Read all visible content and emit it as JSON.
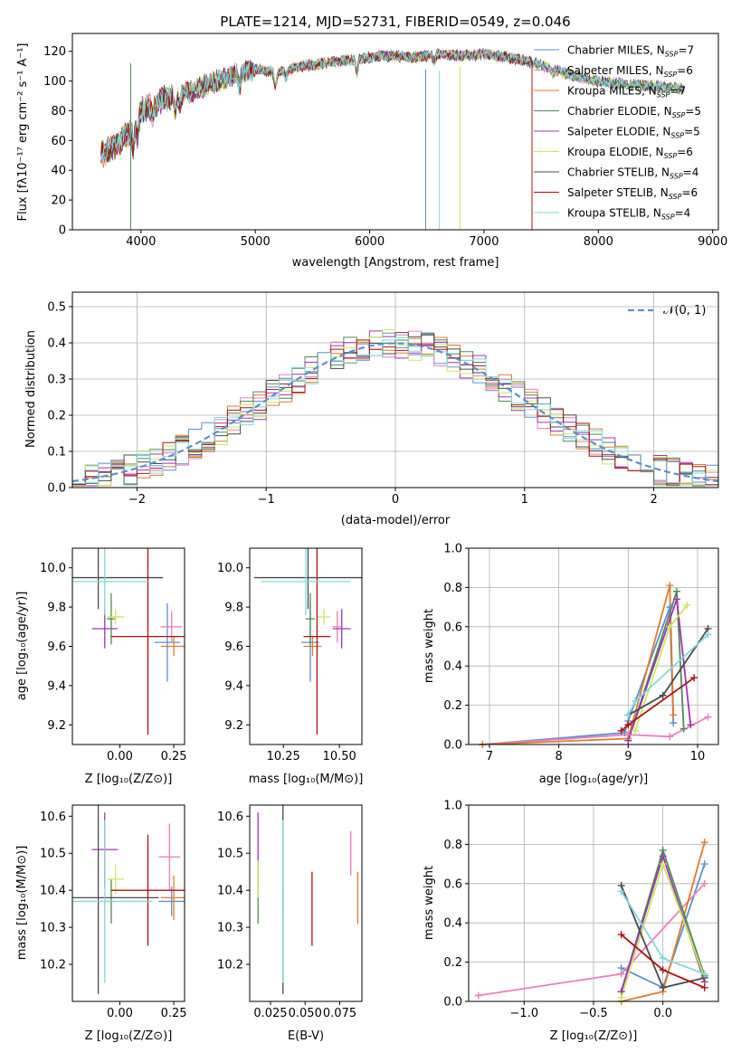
{
  "colors": {
    "Chabrier MILES": "#5b8fd0",
    "Salpeter MILES": "#e87fbf",
    "Kroupa MILES": "#e07b2a",
    "Chabrier ELODIE": "#4f8a55",
    "Salpeter ELODIE": "#a034b4",
    "Kroupa ELODIE": "#c9e85a",
    "Chabrier STELIB": "#4a4a4a",
    "Salpeter STELIB": "#b01010",
    "Kroupa STELIB": "#7fd8dc",
    "normal_curve": "#5b8fd0"
  },
  "chart_data": [
    {
      "id": "spectrum",
      "type": "line",
      "title": "PLATE=1214, MJD=52731, FIBERID=0549, z=0.046",
      "xlabel": "wavelength [Angstrom, rest frame]",
      "ylabel": "Flux [fλ10⁻¹⁷ erg cm⁻² s⁻¹ A⁻¹]",
      "xlim": [
        3400,
        9050
      ],
      "ylim": [
        0,
        132
      ],
      "xticks": [
        "4000",
        "5000",
        "6000",
        "7000",
        "8000",
        "9000"
      ],
      "yticks": [
        "0",
        "20",
        "40",
        "60",
        "80",
        "100",
        "120"
      ],
      "xtick_values": [
        4000,
        5000,
        6000,
        7000,
        8000,
        9000
      ],
      "ytick_values": [
        0,
        20,
        40,
        60,
        80,
        100,
        120
      ],
      "legend_position": "right",
      "legend": [
        {
          "name": "Chabrier MILES",
          "nssp": "7"
        },
        {
          "name": "Salpeter MILES",
          "nssp": "6"
        },
        {
          "name": "Kroupa MILES",
          "nssp": "7"
        },
        {
          "name": "Chabrier ELODIE",
          "nssp": "5"
        },
        {
          "name": "Salpeter ELODIE",
          "nssp": "5"
        },
        {
          "name": "Kroupa ELODIE",
          "nssp": "6"
        },
        {
          "name": "Chabrier STELIB",
          "nssp": "4"
        },
        {
          "name": "Salpeter STELIB",
          "nssp": "6"
        },
        {
          "name": "Kroupa STELIB",
          "nssp": "4"
        }
      ],
      "continuum": {
        "x": [
          3650,
          3750,
          3900,
          4000,
          4200,
          4400,
          4600,
          4800,
          5000,
          5200,
          5400,
          5600,
          5800,
          6000,
          6200,
          6400,
          6600,
          6800,
          7000,
          7200,
          7400,
          7600,
          7800,
          8000,
          8200,
          8400,
          8600,
          8750
        ],
        "y": [
          50,
          55,
          65,
          80,
          88,
          92,
          98,
          104,
          108,
          106,
          110,
          112,
          114,
          116,
          117,
          116,
          118,
          117,
          118,
          116,
          113,
          108,
          103,
          100,
          98,
          97,
          96,
          95
        ],
        "spectrum_end": {
          "Kroupa STELIB": 8750,
          "Salpeter STELIB": 7420
        }
      }
    },
    {
      "id": "residuals",
      "type": "line",
      "xlabel": "(data-model)/error",
      "ylabel": "Normed distribution",
      "xlim": [
        -2.5,
        2.5
      ],
      "ylim": [
        0,
        0.54
      ],
      "xticks": [
        "−2",
        "−1",
        "0",
        "1",
        "2"
      ],
      "yticks": [
        "0.0",
        "0.1",
        "0.2",
        "0.3",
        "0.4",
        "0.5"
      ],
      "xtick_values": [
        -2,
        -1,
        0,
        1,
        2
      ],
      "ytick_values": [
        0,
        0.1,
        0.2,
        0.3,
        0.4,
        0.5
      ],
      "legend_label": "𝒩(0, 1)",
      "legend_position": "top-right",
      "bin_width": 0.1
    },
    {
      "id": "age-vs-z",
      "type": "scatter",
      "xlabel": "Z [log₁₀(Z/Z⊙)]",
      "ylabel": "age  [log₁₀(age/yr)]",
      "xlim": [
        -0.22,
        0.3
      ],
      "ylim": [
        9.1,
        10.1
      ],
      "xticks": [
        "0.00",
        "0.25"
      ],
      "yticks": [
        "9.2",
        "9.4",
        "9.6",
        "9.8",
        "10.0"
      ],
      "xtick_values": [
        0,
        0.25
      ],
      "ytick_values": [
        9.2,
        9.4,
        9.6,
        9.8,
        10.0
      ],
      "points": [
        {
          "model": "Chabrier MILES",
          "x": 0.22,
          "y": 9.62,
          "xerr": 0.06,
          "yerr": 0.2
        },
        {
          "model": "Salpeter MILES",
          "x": 0.24,
          "y": 9.7,
          "xerr": 0.05,
          "yerr": 0.08
        },
        {
          "model": "Kroupa MILES",
          "x": 0.25,
          "y": 9.6,
          "xerr": 0.06,
          "yerr": 0.05
        },
        {
          "model": "Chabrier ELODIE",
          "x": -0.04,
          "y": 9.74,
          "xerr": 0.02,
          "yerr": 0.13
        },
        {
          "model": "Salpeter ELODIE",
          "x": -0.07,
          "y": 9.69,
          "xerr": 0.06,
          "yerr": 0.1
        },
        {
          "model": "Kroupa ELODIE",
          "x": -0.02,
          "y": 9.75,
          "xerr": 0.04,
          "yerr": 0.04
        },
        {
          "model": "Chabrier STELIB",
          "x": -0.1,
          "y": 9.95,
          "xerr": 0.3,
          "yerr": 0.16
        },
        {
          "model": "Salpeter STELIB",
          "x": 0.13,
          "y": 9.65,
          "xerr": 0.17,
          "yerr": 0.5
        },
        {
          "model": "Kroupa STELIB",
          "x": -0.07,
          "y": 9.93,
          "xerr": 0.2,
          "yerr": 0.17
        }
      ]
    },
    {
      "id": "age-vs-mass",
      "type": "scatter",
      "xlabel": "mass [log₁₀(M/M⊙)]",
      "xlim": [
        10.1,
        10.6
      ],
      "ylim": [
        9.1,
        10.1
      ],
      "xticks": [
        "10.25",
        "10.50"
      ],
      "yticks": [
        "9.2",
        "9.4",
        "9.6",
        "9.8",
        "10.0"
      ],
      "xtick_values": [
        10.25,
        10.5
      ],
      "ytick_values": [
        9.2,
        9.4,
        9.6,
        9.8,
        10.0
      ],
      "points": [
        {
          "model": "Chabrier MILES",
          "x": 10.37,
          "y": 9.62,
          "xerr": 0.04,
          "yerr": 0.2
        },
        {
          "model": "Salpeter MILES",
          "x": 10.49,
          "y": 9.7,
          "xerr": 0.02,
          "yerr": 0.08
        },
        {
          "model": "Kroupa MILES",
          "x": 10.38,
          "y": 9.6,
          "xerr": 0.04,
          "yerr": 0.05
        },
        {
          "model": "Chabrier ELODIE",
          "x": 10.37,
          "y": 9.74,
          "xerr": 0.02,
          "yerr": 0.13
        },
        {
          "model": "Salpeter ELODIE",
          "x": 10.51,
          "y": 9.69,
          "xerr": 0.04,
          "yerr": 0.1
        },
        {
          "model": "Kroupa ELODIE",
          "x": 10.43,
          "y": 9.75,
          "xerr": 0.03,
          "yerr": 0.04
        },
        {
          "model": "Chabrier STELIB",
          "x": 10.36,
          "y": 9.95,
          "xerr": 0.24,
          "yerr": 0.16
        },
        {
          "model": "Salpeter STELIB",
          "x": 10.4,
          "y": 9.65,
          "xerr": 0.06,
          "yerr": 0.5
        },
        {
          "model": "Kroupa STELIB",
          "x": 10.35,
          "y": 9.93,
          "xerr": 0.2,
          "yerr": 0.17
        }
      ]
    },
    {
      "id": "mass-weight-vs-age",
      "type": "line",
      "xlabel": "age  [log₁₀(age/yr)]",
      "ylabel": "mass weight",
      "xlim": [
        6.7,
        10.3
      ],
      "ylim": [
        0,
        1
      ],
      "xticks": [
        "7",
        "8",
        "9",
        "10"
      ],
      "yticks": [
        "0.0",
        "0.2",
        "0.4",
        "0.6",
        "0.8",
        "1.0"
      ],
      "xtick_values": [
        7,
        8,
        9,
        10
      ],
      "ytick_values": [
        0,
        0.2,
        0.4,
        0.6,
        0.8,
        1.0
      ],
      "series": [
        {
          "model": "Chabrier MILES",
          "x": [
            6.9,
            8.95,
            9.0,
            9.6,
            9.65
          ],
          "y": [
            0.0,
            0.06,
            0.12,
            0.7,
            0.11
          ]
        },
        {
          "model": "Salpeter MILES",
          "x": [
            6.9,
            9.0,
            9.6,
            10.15
          ],
          "y": [
            0.0,
            0.05,
            0.04,
            0.14
          ]
        },
        {
          "model": "Kroupa MILES",
          "x": [
            6.9,
            9.0,
            9.6,
            9.65
          ],
          "y": [
            0.0,
            0.03,
            0.81,
            0.15
          ]
        },
        {
          "model": "Chabrier ELODIE",
          "x": [
            9.0,
            9.7,
            9.8
          ],
          "y": [
            0.02,
            0.78,
            0.08
          ]
        },
        {
          "model": "Salpeter ELODIE",
          "x": [
            9.0,
            9.7,
            9.9
          ],
          "y": [
            0.02,
            0.74,
            0.1
          ]
        },
        {
          "model": "Kroupa ELODIE",
          "x": [
            9.1,
            9.6,
            9.85
          ],
          "y": [
            0.07,
            0.6,
            0.71
          ]
        },
        {
          "model": "Chabrier STELIB",
          "x": [
            9.0,
            9.5,
            10.15
          ],
          "y": [
            0.15,
            0.25,
            0.59
          ]
        },
        {
          "model": "Salpeter STELIB",
          "x": [
            8.9,
            9.0,
            9.95
          ],
          "y": [
            0.07,
            0.1,
            0.34
          ]
        },
        {
          "model": "Kroupa STELIB",
          "x": [
            9.0,
            9.1,
            10.15
          ],
          "y": [
            0.15,
            0.22,
            0.56
          ]
        }
      ]
    },
    {
      "id": "mass-vs-z",
      "type": "scatter",
      "xlabel": "Z [log₁₀(Z/Z⊙)]",
      "ylabel": "mass [log₁₀(M/M⊙)]",
      "xlim": [
        -0.22,
        0.3
      ],
      "ylim": [
        10.1,
        10.63
      ],
      "xticks": [
        "0.00",
        "0.25"
      ],
      "yticks": [
        "10.2",
        "10.3",
        "10.4",
        "10.5",
        "10.6"
      ],
      "xtick_values": [
        0,
        0.25
      ],
      "ytick_values": [
        10.2,
        10.3,
        10.4,
        10.5,
        10.6
      ],
      "points": [
        {
          "model": "Chabrier MILES",
          "x": 0.24,
          "y": 10.37,
          "xerr": 0.06,
          "yerr": 0.04
        },
        {
          "model": "Salpeter MILES",
          "x": 0.23,
          "y": 10.49,
          "xerr": 0.05,
          "yerr": 0.09
        },
        {
          "model": "Kroupa MILES",
          "x": 0.25,
          "y": 10.38,
          "xerr": 0.06,
          "yerr": 0.06
        },
        {
          "model": "Chabrier ELODIE",
          "x": -0.04,
          "y": 10.37,
          "xerr": 0.02,
          "yerr": 0.06
        },
        {
          "model": "Salpeter ELODIE",
          "x": -0.07,
          "y": 10.51,
          "xerr": 0.06,
          "yerr": 0.1
        },
        {
          "model": "Kroupa ELODIE",
          "x": -0.02,
          "y": 10.43,
          "xerr": 0.04,
          "yerr": 0.04
        },
        {
          "model": "Chabrier STELIB",
          "x": -0.1,
          "y": 10.38,
          "xerr": 0.28,
          "yerr": 0.26
        },
        {
          "model": "Salpeter STELIB",
          "x": 0.13,
          "y": 10.4,
          "xerr": 0.17,
          "yerr": 0.15
        },
        {
          "model": "Kroupa STELIB",
          "x": -0.07,
          "y": 10.37,
          "xerr": 0.22,
          "yerr": 0.22
        }
      ]
    },
    {
      "id": "mass-vs-ebv",
      "type": "scatter",
      "xlabel": "E(B-V)",
      "xlim": [
        0.01,
        0.091
      ],
      "ylim": [
        10.1,
        10.63
      ],
      "xticks": [
        "0.025",
        "0.050",
        "0.075"
      ],
      "yticks": [
        "10.2",
        "10.3",
        "10.4",
        "10.5",
        "10.6"
      ],
      "xtick_values": [
        0.025,
        0.05,
        0.075
      ],
      "ytick_values": [
        10.2,
        10.3,
        10.4,
        10.5,
        10.6
      ],
      "points": [
        {
          "model": "Chabrier MILES",
          "x": 0.034,
          "y": 10.37,
          "xerr": 0,
          "yerr": 0.04
        },
        {
          "model": "Salpeter MILES",
          "x": 0.083,
          "y": 10.5,
          "xerr": 0,
          "yerr": 0.06
        },
        {
          "model": "Kroupa MILES",
          "x": 0.088,
          "y": 10.38,
          "xerr": 0,
          "yerr": 0.07
        },
        {
          "model": "Chabrier ELODIE",
          "x": 0.016,
          "y": 10.37,
          "xerr": 0,
          "yerr": 0.06
        },
        {
          "model": "Salpeter ELODIE",
          "x": 0.016,
          "y": 10.51,
          "xerr": 0,
          "yerr": 0.1
        },
        {
          "model": "Kroupa ELODIE",
          "x": 0.016,
          "y": 10.43,
          "xerr": 0,
          "yerr": 0.05
        },
        {
          "model": "Chabrier STELIB",
          "x": 0.034,
          "y": 10.38,
          "xerr": 0,
          "yerr": 0.26
        },
        {
          "model": "Salpeter STELIB",
          "x": 0.055,
          "y": 10.35,
          "xerr": 0,
          "yerr": 0.1
        },
        {
          "model": "Kroupa STELIB",
          "x": 0.034,
          "y": 10.37,
          "xerr": 0,
          "yerr": 0.22
        }
      ]
    },
    {
      "id": "mass-weight-vs-z",
      "type": "line",
      "xlabel": "Z [log₁₀(Z/Z⊙)]",
      "ylabel": "mass weight",
      "xlim": [
        -1.4,
        0.4
      ],
      "ylim": [
        0,
        1
      ],
      "xticks": [
        "−1.0",
        "−0.5",
        "0.0"
      ],
      "yticks": [
        "0.0",
        "0.2",
        "0.4",
        "0.6",
        "0.8",
        "1.0"
      ],
      "xtick_values": [
        -1.0,
        -0.5,
        0.0
      ],
      "ytick_values": [
        0,
        0.2,
        0.4,
        0.6,
        0.8,
        1.0
      ],
      "series": [
        {
          "model": "Chabrier MILES",
          "x": [
            -0.3,
            0.0,
            0.3
          ],
          "y": [
            0.17,
            0.07,
            0.7
          ]
        },
        {
          "model": "Salpeter MILES",
          "x": [
            -1.33,
            -0.3,
            0.3
          ],
          "y": [
            0.03,
            0.14,
            0.6
          ]
        },
        {
          "model": "Kroupa MILES",
          "x": [
            -0.3,
            0.0,
            0.3
          ],
          "y": [
            0.0,
            0.05,
            0.81
          ]
        },
        {
          "model": "Chabrier ELODIE",
          "x": [
            -0.3,
            0.0,
            0.3
          ],
          "y": [
            0.05,
            0.77,
            0.13
          ]
        },
        {
          "model": "Salpeter ELODIE",
          "x": [
            -0.3,
            0.0,
            0.3
          ],
          "y": [
            0.05,
            0.74,
            0.1
          ]
        },
        {
          "model": "Kroupa ELODIE",
          "x": [
            -0.3,
            0.0,
            0.3
          ],
          "y": [
            0.02,
            0.7,
            0.12
          ]
        },
        {
          "model": "Chabrier STELIB",
          "x": [
            -0.3,
            0.0,
            0.3
          ],
          "y": [
            0.59,
            0.07,
            0.12
          ]
        },
        {
          "model": "Salpeter STELIB",
          "x": [
            -0.3,
            0.0,
            0.3
          ],
          "y": [
            0.34,
            0.16,
            0.07
          ]
        },
        {
          "model": "Kroupa STELIB",
          "x": [
            -0.3,
            0.0,
            0.3
          ],
          "y": [
            0.56,
            0.22,
            0.14
          ]
        }
      ]
    }
  ]
}
